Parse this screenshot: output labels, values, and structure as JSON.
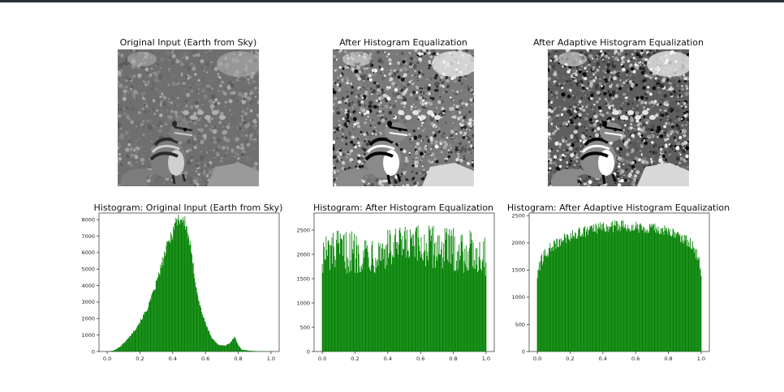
{
  "panels": [
    {
      "image_title": "Original Input (Earth from Sky)",
      "hist_title": "Histogram: Original Input (Earth from Sky)",
      "tone": "original"
    },
    {
      "image_title": "After Histogram Equalization",
      "hist_title": "Histogram: After Histogram Equalization",
      "tone": "equalized"
    },
    {
      "image_title": "After Adaptive Histogram Equalization",
      "hist_title": "Histogram: After Adaptive Histogram Equalization",
      "tone": "adaptive"
    }
  ],
  "chart_data": [
    {
      "type": "bar",
      "title": "Histogram: Original Input (Earth from Sky)",
      "xlabel": "",
      "ylabel": "",
      "xlim": [
        0.0,
        1.0
      ],
      "ylim": [
        0,
        8400
      ],
      "xticks": [
        "0.0",
        "0.2",
        "0.4",
        "0.6",
        "0.8",
        "1.0"
      ],
      "yticks": [
        "0",
        "1000",
        "2000",
        "3000",
        "4000",
        "5000",
        "6000",
        "7000",
        "8000"
      ],
      "ytick_values": [
        0,
        1000,
        2000,
        3000,
        4000,
        5000,
        6000,
        7000,
        8000
      ],
      "color": "#008000",
      "x": [
        0.0,
        0.04,
        0.08,
        0.12,
        0.16,
        0.2,
        0.24,
        0.28,
        0.32,
        0.36,
        0.4,
        0.42,
        0.44,
        0.46,
        0.48,
        0.5,
        0.52,
        0.54,
        0.56,
        0.6,
        0.64,
        0.68,
        0.72,
        0.75,
        0.77,
        0.78,
        0.8,
        0.82,
        0.86,
        0.9,
        0.94,
        0.98,
        1.0
      ],
      "values": [
        0,
        60,
        300,
        700,
        1200,
        1800,
        2500,
        3500,
        4800,
        6200,
        7300,
        7900,
        8100,
        8000,
        7700,
        6800,
        5500,
        4200,
        3000,
        1700,
        800,
        400,
        350,
        500,
        800,
        900,
        400,
        120,
        60,
        30,
        10,
        0,
        0
      ]
    },
    {
      "type": "bar",
      "title": "Histogram: After Histogram Equalization",
      "xlabel": "",
      "ylabel": "",
      "xlim": [
        0.0,
        1.0
      ],
      "ylim": [
        0,
        2850
      ],
      "xticks": [
        "0.0",
        "0.2",
        "0.4",
        "0.6",
        "0.8",
        "1.0"
      ],
      "yticks": [
        "0",
        "500",
        "1000",
        "1500",
        "2000",
        "2500"
      ],
      "ytick_values": [
        0,
        500,
        1000,
        1500,
        2000,
        2500
      ],
      "color": "#008000",
      "x": [
        0.0,
        0.1,
        0.2,
        0.3,
        0.4,
        0.5,
        0.6,
        0.7,
        0.8,
        0.9,
        1.0
      ],
      "values": [
        2000,
        2050,
        2050,
        2050,
        2100,
        2150,
        2150,
        2150,
        2100,
        2050,
        2000
      ]
    },
    {
      "type": "bar",
      "title": "Histogram: After Adaptive Histogram Equalization",
      "xlabel": "",
      "ylabel": "",
      "xlim": [
        0.0,
        1.0
      ],
      "ylim": [
        0,
        2550
      ],
      "xticks": [
        "0.0",
        "0.2",
        "0.4",
        "0.6",
        "0.8",
        "1.0"
      ],
      "yticks": [
        "0",
        "500",
        "1000",
        "1500",
        "2000",
        "2500"
      ],
      "ytick_values": [
        0,
        500,
        1000,
        1500,
        2000,
        2500
      ],
      "color": "#008000",
      "x": [
        0.0,
        0.02,
        0.05,
        0.1,
        0.15,
        0.2,
        0.3,
        0.4,
        0.5,
        0.6,
        0.7,
        0.8,
        0.85,
        0.9,
        0.95,
        0.98,
        1.0
      ],
      "values": [
        1400,
        1650,
        1800,
        1950,
        2050,
        2130,
        2220,
        2280,
        2320,
        2300,
        2280,
        2200,
        2150,
        2080,
        1950,
        1750,
        1500
      ]
    }
  ]
}
